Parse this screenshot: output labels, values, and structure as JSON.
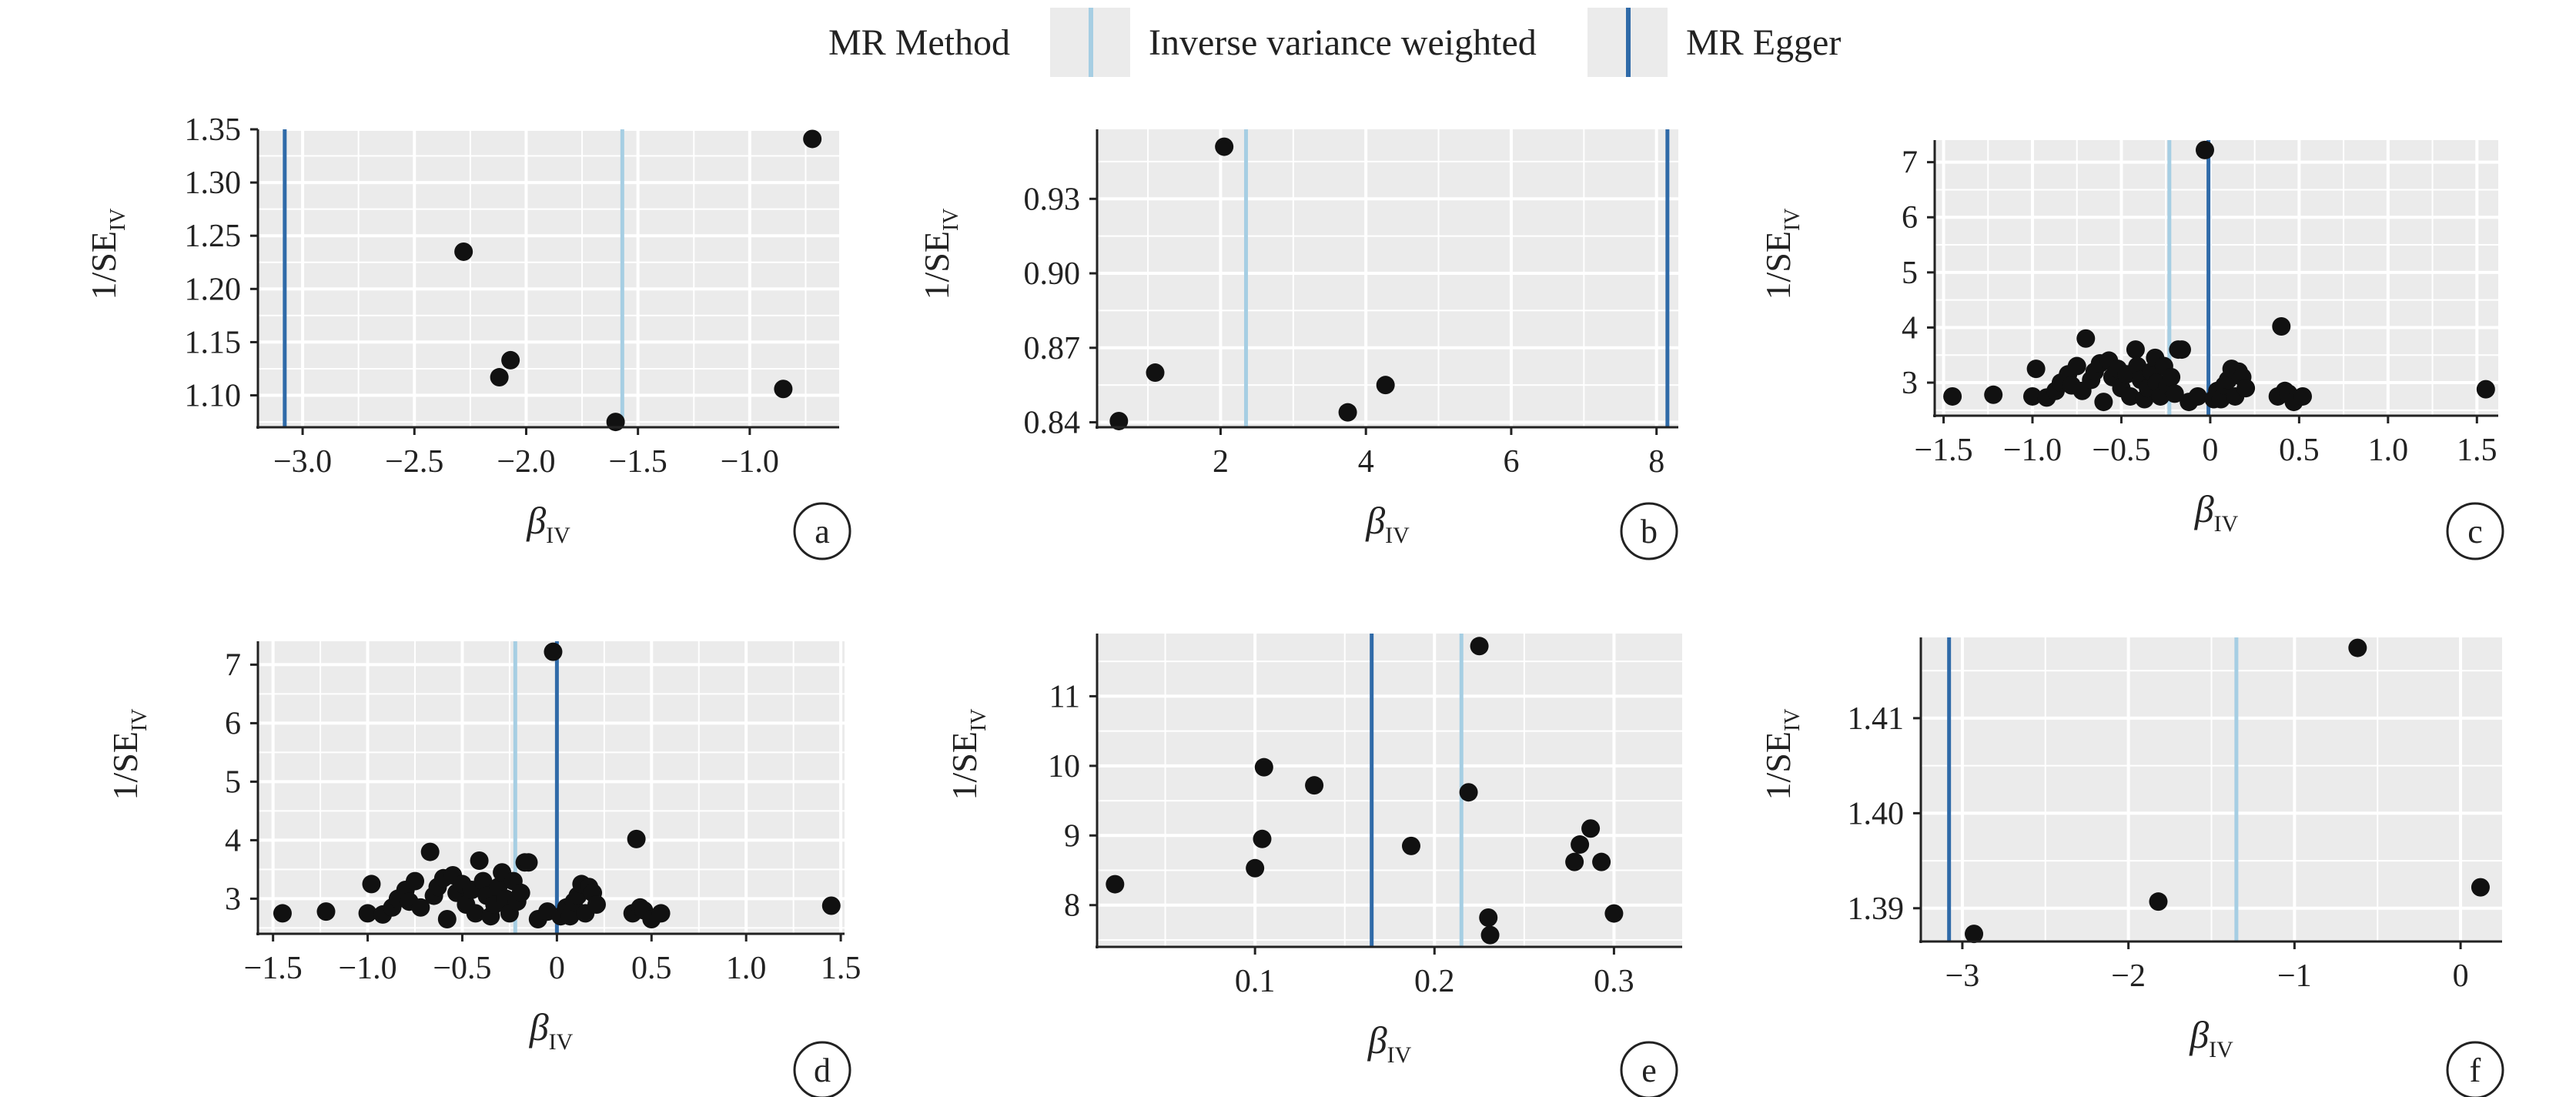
{
  "legend": {
    "title": "MR Method",
    "items": [
      {
        "label": "Inverse variance weighted",
        "color": "#a6cee3"
      },
      {
        "label": "MR Egger",
        "color": "#2f6aa8"
      }
    ]
  },
  "colors": {
    "ivw": "#a6cee3",
    "egger": "#2f6aa8",
    "point": "#111111",
    "panel_bg": "#ebebeb",
    "grid": "#ffffff"
  },
  "chart_data": [
    {
      "type": "scatter",
      "panel_label": "a",
      "xlabel": "β",
      "xlabel_sub": "IV",
      "ylabel": "1/SE",
      "ylabel_sub": "IV",
      "xlim": [
        -3.2,
        -0.6
      ],
      "ylim": [
        1.07,
        1.35
      ],
      "xticks": [
        -3.0,
        -2.5,
        -2.0,
        -1.5,
        -1.0
      ],
      "xtick_labels": [
        "−3.0",
        "−2.5",
        "−2.0",
        "−1.5",
        "−1.0"
      ],
      "yticks": [
        1.1,
        1.15,
        1.2,
        1.25,
        1.3,
        1.35
      ],
      "ytick_labels": [
        "1.10",
        "1.15",
        "1.20",
        "1.25",
        "1.30",
        "1.35"
      ],
      "ivw_beta": -1.57,
      "egger_beta": -3.08,
      "points": [
        [
          -2.28,
          1.235
        ],
        [
          -2.07,
          1.133
        ],
        [
          -2.12,
          1.117
        ],
        [
          -1.6,
          1.075
        ],
        [
          -0.85,
          1.106
        ],
        [
          -0.72,
          1.341
        ]
      ]
    },
    {
      "type": "scatter",
      "panel_label": "b",
      "xlabel": "β",
      "xlabel_sub": "IV",
      "ylabel": "1/SE",
      "ylabel_sub": "IV",
      "xlim": [
        0.3,
        8.3
      ],
      "ylim": [
        0.838,
        0.958
      ],
      "xticks": [
        2,
        4,
        6,
        8
      ],
      "xtick_labels": [
        "2",
        "4",
        "6",
        "8"
      ],
      "yticks": [
        0.84,
        0.87,
        0.9,
        0.93
      ],
      "ytick_labels": [
        "0.84",
        "0.87",
        "0.90",
        "0.93"
      ],
      "ivw_beta": 2.35,
      "egger_beta": 8.15,
      "points": [
        [
          0.6,
          0.8405
        ],
        [
          1.1,
          0.86
        ],
        [
          2.05,
          0.951
        ],
        [
          3.75,
          0.844
        ],
        [
          4.27,
          0.855
        ]
      ]
    },
    {
      "type": "scatter",
      "panel_label": "c",
      "xlabel": "β",
      "xlabel_sub": "IV",
      "ylabel": "1/SE",
      "ylabel_sub": "IV",
      "xlim": [
        -1.55,
        1.62
      ],
      "ylim": [
        2.4,
        7.4
      ],
      "xticks": [
        -1.5,
        -1.0,
        -0.5,
        0,
        0.5,
        1.0,
        1.5
      ],
      "xtick_labels": [
        "−1.5",
        "−1.0",
        "−0.5",
        "0",
        "0.5",
        "1.0",
        "1.5"
      ],
      "yticks": [
        3,
        4,
        5,
        6,
        7
      ],
      "ytick_labels": [
        "3",
        "4",
        "5",
        "6",
        "7"
      ],
      "ivw_beta": -0.23,
      "egger_beta": -0.01,
      "points": [
        [
          -1.45,
          2.75
        ],
        [
          -1.22,
          2.78
        ],
        [
          -1.0,
          2.75
        ],
        [
          -0.98,
          3.25
        ],
        [
          -0.92,
          2.73
        ],
        [
          -0.87,
          2.85
        ],
        [
          -0.84,
          3.0
        ],
        [
          -0.8,
          3.15
        ],
        [
          -0.78,
          2.95
        ],
        [
          -0.75,
          3.3
        ],
        [
          -0.72,
          2.85
        ],
        [
          -0.7,
          3.8
        ],
        [
          -0.67,
          3.05
        ],
        [
          -0.65,
          3.2
        ],
        [
          -0.62,
          3.35
        ],
        [
          -0.6,
          2.65
        ],
        [
          -0.57,
          3.4
        ],
        [
          -0.55,
          3.1
        ],
        [
          -0.52,
          3.25
        ],
        [
          -0.5,
          2.9
        ],
        [
          -0.47,
          3.15
        ],
        [
          -0.45,
          2.75
        ],
        [
          -0.42,
          3.6
        ],
        [
          -0.41,
          3.3
        ],
        [
          -0.39,
          3.05
        ],
        [
          -0.37,
          2.7
        ],
        [
          -0.35,
          2.9
        ],
        [
          -0.33,
          3.2
        ],
        [
          -0.31,
          3.45
        ],
        [
          -0.3,
          3.0
        ],
        [
          -0.28,
          2.75
        ],
        [
          -0.26,
          3.3
        ],
        [
          -0.24,
          2.95
        ],
        [
          -0.22,
          3.1
        ],
        [
          -0.2,
          2.8
        ],
        [
          -0.18,
          3.6
        ],
        [
          -0.16,
          3.6
        ],
        [
          -0.12,
          2.65
        ],
        [
          -0.07,
          2.75
        ],
        [
          -0.03,
          7.22
        ],
        [
          0.02,
          2.7
        ],
        [
          0.04,
          2.85
        ],
        [
          0.06,
          2.7
        ],
        [
          0.08,
          2.95
        ],
        [
          0.1,
          3.05
        ],
        [
          0.12,
          3.25
        ],
        [
          0.14,
          2.75
        ],
        [
          0.16,
          3.2
        ],
        [
          0.18,
          3.1
        ],
        [
          0.2,
          2.9
        ],
        [
          0.38,
          2.75
        ],
        [
          0.4,
          4.02
        ],
        [
          0.42,
          2.85
        ],
        [
          0.44,
          2.8
        ],
        [
          0.47,
          2.65
        ],
        [
          0.52,
          2.75
        ],
        [
          1.55,
          2.88
        ]
      ]
    },
    {
      "type": "scatter",
      "panel_label": "d",
      "xlabel": "β",
      "xlabel_sub": "IV",
      "ylabel": "1/SE",
      "ylabel_sub": "IV",
      "xlim": [
        -1.58,
        1.52
      ],
      "ylim": [
        2.4,
        7.4
      ],
      "xticks": [
        -1.5,
        -1.0,
        -0.5,
        0,
        0.5,
        1.0,
        1.5
      ],
      "xtick_labels": [
        "−1.5",
        "−1.0",
        "−0.5",
        "0",
        "0.5",
        "1.0",
        "1.5"
      ],
      "yticks": [
        3,
        4,
        5,
        6,
        7
      ],
      "ytick_labels": [
        "3",
        "4",
        "5",
        "6",
        "7"
      ],
      "ivw_beta": -0.22,
      "egger_beta": 0.0,
      "points": [
        [
          -1.45,
          2.75
        ],
        [
          -1.22,
          2.78
        ],
        [
          -1.0,
          2.75
        ],
        [
          -0.98,
          3.25
        ],
        [
          -0.92,
          2.73
        ],
        [
          -0.87,
          2.85
        ],
        [
          -0.84,
          3.0
        ],
        [
          -0.8,
          3.15
        ],
        [
          -0.78,
          2.95
        ],
        [
          -0.75,
          3.3
        ],
        [
          -0.72,
          2.85
        ],
        [
          -0.67,
          3.8
        ],
        [
          -0.65,
          3.05
        ],
        [
          -0.63,
          3.2
        ],
        [
          -0.6,
          3.35
        ],
        [
          -0.58,
          2.65
        ],
        [
          -0.55,
          3.4
        ],
        [
          -0.53,
          3.1
        ],
        [
          -0.5,
          3.25
        ],
        [
          -0.48,
          2.9
        ],
        [
          -0.45,
          3.15
        ],
        [
          -0.43,
          2.75
        ],
        [
          -0.41,
          3.65
        ],
        [
          -0.39,
          3.3
        ],
        [
          -0.37,
          3.05
        ],
        [
          -0.35,
          2.7
        ],
        [
          -0.33,
          2.9
        ],
        [
          -0.31,
          3.2
        ],
        [
          -0.29,
          3.45
        ],
        [
          -0.27,
          3.0
        ],
        [
          -0.25,
          2.75
        ],
        [
          -0.23,
          3.3
        ],
        [
          -0.21,
          2.95
        ],
        [
          -0.19,
          3.1
        ],
        [
          -0.17,
          3.62
        ],
        [
          -0.15,
          3.62
        ],
        [
          -0.1,
          2.65
        ],
        [
          -0.05,
          2.78
        ],
        [
          -0.02,
          7.22
        ],
        [
          0.02,
          2.7
        ],
        [
          0.05,
          2.85
        ],
        [
          0.07,
          2.7
        ],
        [
          0.09,
          2.95
        ],
        [
          0.11,
          3.05
        ],
        [
          0.13,
          3.25
        ],
        [
          0.15,
          2.75
        ],
        [
          0.17,
          3.2
        ],
        [
          0.19,
          3.1
        ],
        [
          0.21,
          2.9
        ],
        [
          0.4,
          2.75
        ],
        [
          0.42,
          4.02
        ],
        [
          0.44,
          2.85
        ],
        [
          0.46,
          2.8
        ],
        [
          0.5,
          2.65
        ],
        [
          0.55,
          2.75
        ],
        [
          1.45,
          2.88
        ]
      ]
    },
    {
      "type": "scatter",
      "panel_label": "e",
      "xlabel": "β",
      "xlabel_sub": "IV",
      "ylabel": "1/SE",
      "ylabel_sub": "IV",
      "xlim": [
        0.012,
        0.338
      ],
      "ylim": [
        7.4,
        11.9
      ],
      "xticks": [
        0.1,
        0.2,
        0.3
      ],
      "xtick_labels": [
        "0.1",
        "0.2",
        "0.3"
      ],
      "yticks": [
        8,
        9,
        10,
        11
      ],
      "ytick_labels": [
        "8",
        "9",
        "10",
        "11"
      ],
      "ivw_beta": 0.215,
      "egger_beta": 0.165,
      "points": [
        [
          0.022,
          8.3
        ],
        [
          0.1,
          8.53
        ],
        [
          0.104,
          8.95
        ],
        [
          0.105,
          9.98
        ],
        [
          0.133,
          9.72
        ],
        [
          0.187,
          8.85
        ],
        [
          0.219,
          9.62
        ],
        [
          0.225,
          11.72
        ],
        [
          0.23,
          7.82
        ],
        [
          0.231,
          7.57
        ],
        [
          0.278,
          8.62
        ],
        [
          0.281,
          8.87
        ],
        [
          0.287,
          9.1
        ],
        [
          0.293,
          8.62
        ],
        [
          0.3,
          7.88
        ]
      ]
    },
    {
      "type": "scatter",
      "panel_label": "f",
      "xlabel": "β",
      "xlabel_sub": "IV",
      "ylabel": "1/SE",
      "ylabel_sub": "IV",
      "xlim": [
        -3.25,
        0.25
      ],
      "ylim": [
        1.3865,
        1.4185
      ],
      "xticks": [
        -3,
        -2,
        -1,
        0
      ],
      "xtick_labels": [
        "−3",
        "−2",
        "−1",
        "0"
      ],
      "yticks": [
        1.39,
        1.4,
        1.41
      ],
      "ytick_labels": [
        "1.39",
        "1.40",
        "1.41"
      ],
      "ivw_beta": -1.35,
      "egger_beta": -3.08,
      "points": [
        [
          -2.93,
          1.3873
        ],
        [
          -1.82,
          1.3907
        ],
        [
          -0.62,
          1.4174
        ],
        [
          0.12,
          1.3922
        ]
      ]
    }
  ]
}
